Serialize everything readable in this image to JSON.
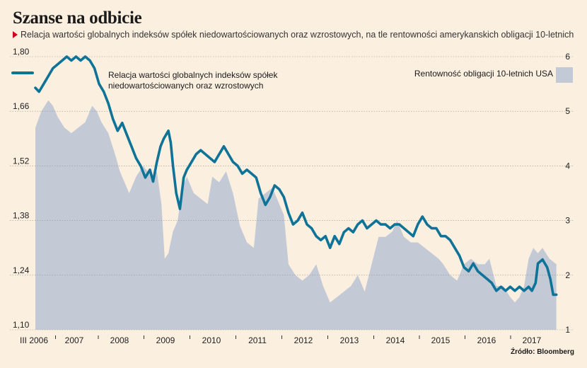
{
  "header": {
    "title": "Szanse na odbicie",
    "subtitle": "Relacja wartości globalnych indeksów spółek niedowartościowanych oraz wzrostowych, na tle rentowności amerykanskich obligacji 10-letnich"
  },
  "footer": {
    "source": "Źródło: Bloomberg"
  },
  "chart_data": {
    "type": "line",
    "x_tick_labels": [
      "III 2006",
      "2007",
      "2008",
      "2009",
      "2010",
      "2011",
      "2012",
      "2013",
      "2014",
      "2015",
      "2016",
      "2017"
    ],
    "left_axis": {
      "ticks": [
        "1,80",
        "1,66",
        "1,52",
        "1,38",
        "1,24",
        "1,10"
      ],
      "range": [
        1.1,
        1.8
      ]
    },
    "right_axis": {
      "ticks": [
        "6",
        "5",
        "4",
        "3",
        "2",
        "1"
      ],
      "range": [
        1,
        6
      ]
    },
    "grid": true,
    "series": [
      {
        "name_lines": [
          "Relacja wartości globalnych indeksów spółek",
          "niedowartościowanych oraz wzrostowych"
        ],
        "axis": "left",
        "style": "line",
        "color": "#0f7397",
        "x": [
          2006.17,
          2006.25,
          2006.35,
          2006.45,
          2006.55,
          2006.65,
          2006.75,
          2006.85,
          2006.95,
          2007.05,
          2007.15,
          2007.25,
          2007.35,
          2007.45,
          2007.55,
          2007.65,
          2007.75,
          2007.85,
          2007.95,
          2008.05,
          2008.15,
          2008.25,
          2008.35,
          2008.45,
          2008.55,
          2008.65,
          2008.72,
          2008.8,
          2008.88,
          2008.95,
          2009.05,
          2009.1,
          2009.15,
          2009.22,
          2009.3,
          2009.38,
          2009.45,
          2009.55,
          2009.65,
          2009.75,
          2009.85,
          2009.95,
          2010.05,
          2010.15,
          2010.25,
          2010.35,
          2010.45,
          2010.55,
          2010.65,
          2010.75,
          2010.85,
          2010.95,
          2011.05,
          2011.15,
          2011.25,
          2011.35,
          2011.45,
          2011.55,
          2011.65,
          2011.75,
          2011.85,
          2011.95,
          2012.05,
          2012.15,
          2012.25,
          2012.35,
          2012.45,
          2012.55,
          2012.65,
          2012.75,
          2012.85,
          2012.95,
          2013.05,
          2013.15,
          2013.25,
          2013.35,
          2013.45,
          2013.55,
          2013.65,
          2013.75,
          2013.85,
          2013.95,
          2014.05,
          2014.15,
          2014.25,
          2014.35,
          2014.45,
          2014.55,
          2014.65,
          2014.75,
          2014.85,
          2014.95,
          2015.05,
          2015.15,
          2015.25,
          2015.35,
          2015.45,
          2015.55,
          2015.65,
          2015.75,
          2015.85,
          2015.95,
          2016.05,
          2016.15,
          2016.25,
          2016.35,
          2016.45,
          2016.55,
          2016.65,
          2016.75,
          2016.85,
          2016.92,
          2017.0,
          2017.05,
          2017.15,
          2017.25,
          2017.32,
          2017.38,
          2017.45
        ],
        "values": [
          1.72,
          1.71,
          1.73,
          1.75,
          1.77,
          1.78,
          1.79,
          1.8,
          1.79,
          1.8,
          1.79,
          1.8,
          1.79,
          1.77,
          1.73,
          1.71,
          1.68,
          1.64,
          1.61,
          1.63,
          1.6,
          1.57,
          1.54,
          1.52,
          1.49,
          1.51,
          1.48,
          1.53,
          1.57,
          1.59,
          1.61,
          1.58,
          1.52,
          1.45,
          1.41,
          1.49,
          1.51,
          1.53,
          1.55,
          1.56,
          1.55,
          1.54,
          1.53,
          1.55,
          1.57,
          1.55,
          1.53,
          1.52,
          1.5,
          1.51,
          1.5,
          1.49,
          1.45,
          1.42,
          1.44,
          1.47,
          1.46,
          1.44,
          1.4,
          1.37,
          1.38,
          1.4,
          1.37,
          1.36,
          1.34,
          1.33,
          1.34,
          1.31,
          1.34,
          1.32,
          1.35,
          1.36,
          1.35,
          1.37,
          1.38,
          1.36,
          1.37,
          1.38,
          1.37,
          1.37,
          1.36,
          1.37,
          1.37,
          1.36,
          1.35,
          1.34,
          1.37,
          1.39,
          1.37,
          1.36,
          1.36,
          1.34,
          1.34,
          1.33,
          1.31,
          1.29,
          1.26,
          1.25,
          1.27,
          1.25,
          1.24,
          1.23,
          1.22,
          1.2,
          1.21,
          1.2,
          1.21,
          1.2,
          1.21,
          1.2,
          1.21,
          1.2,
          1.22,
          1.27,
          1.28,
          1.26,
          1.23,
          1.19,
          1.19
        ]
      },
      {
        "name": "Rentowność obligacji 10-letnich USA",
        "axis": "right",
        "style": "area",
        "color": "#c3cad6",
        "x": [
          2006.17,
          2006.3,
          2006.45,
          2006.55,
          2006.65,
          2006.8,
          2006.95,
          2007.1,
          2007.25,
          2007.4,
          2007.5,
          2007.6,
          2007.75,
          2007.9,
          2008.0,
          2008.1,
          2008.2,
          2008.35,
          2008.5,
          2008.6,
          2008.7,
          2008.8,
          2008.9,
          2008.97,
          2009.05,
          2009.15,
          2009.25,
          2009.35,
          2009.45,
          2009.6,
          2009.75,
          2009.9,
          2010.0,
          2010.15,
          2010.3,
          2010.45,
          2010.6,
          2010.75,
          2010.9,
          2011.0,
          2011.15,
          2011.3,
          2011.45,
          2011.55,
          2011.65,
          2011.8,
          2011.95,
          2012.1,
          2012.25,
          2012.4,
          2012.55,
          2012.7,
          2012.85,
          2013.0,
          2013.15,
          2013.3,
          2013.45,
          2013.6,
          2013.75,
          2013.9,
          2014.0,
          2014.15,
          2014.3,
          2014.45,
          2014.6,
          2014.75,
          2014.9,
          2015.0,
          2015.15,
          2015.3,
          2015.45,
          2015.6,
          2015.75,
          2015.9,
          2016.0,
          2016.15,
          2016.3,
          2016.45,
          2016.55,
          2016.65,
          2016.75,
          2016.85,
          2016.95,
          2017.05,
          2017.15,
          2017.3,
          2017.45
        ],
        "values": [
          4.7,
          5.0,
          5.2,
          5.1,
          4.9,
          4.7,
          4.6,
          4.7,
          4.8,
          5.1,
          5.0,
          4.8,
          4.6,
          4.2,
          3.9,
          3.7,
          3.5,
          3.8,
          4.0,
          3.9,
          3.8,
          3.9,
          3.3,
          2.3,
          2.4,
          2.8,
          3.0,
          3.6,
          3.8,
          3.5,
          3.4,
          3.3,
          3.8,
          3.7,
          3.9,
          3.5,
          2.9,
          2.6,
          2.5,
          3.4,
          3.5,
          3.6,
          3.3,
          3.1,
          2.2,
          2.0,
          1.9,
          2.0,
          2.2,
          1.8,
          1.5,
          1.6,
          1.7,
          1.8,
          2.0,
          1.7,
          2.2,
          2.7,
          2.7,
          2.8,
          3.0,
          2.7,
          2.6,
          2.6,
          2.5,
          2.4,
          2.3,
          2.2,
          2.0,
          1.9,
          2.2,
          2.3,
          2.2,
          2.2,
          2.3,
          1.8,
          1.8,
          1.6,
          1.5,
          1.6,
          1.8,
          2.3,
          2.5,
          2.4,
          2.5,
          2.3,
          2.2
        ]
      }
    ],
    "legend": {
      "left_series": "top-left",
      "right_series": "top-right"
    }
  }
}
